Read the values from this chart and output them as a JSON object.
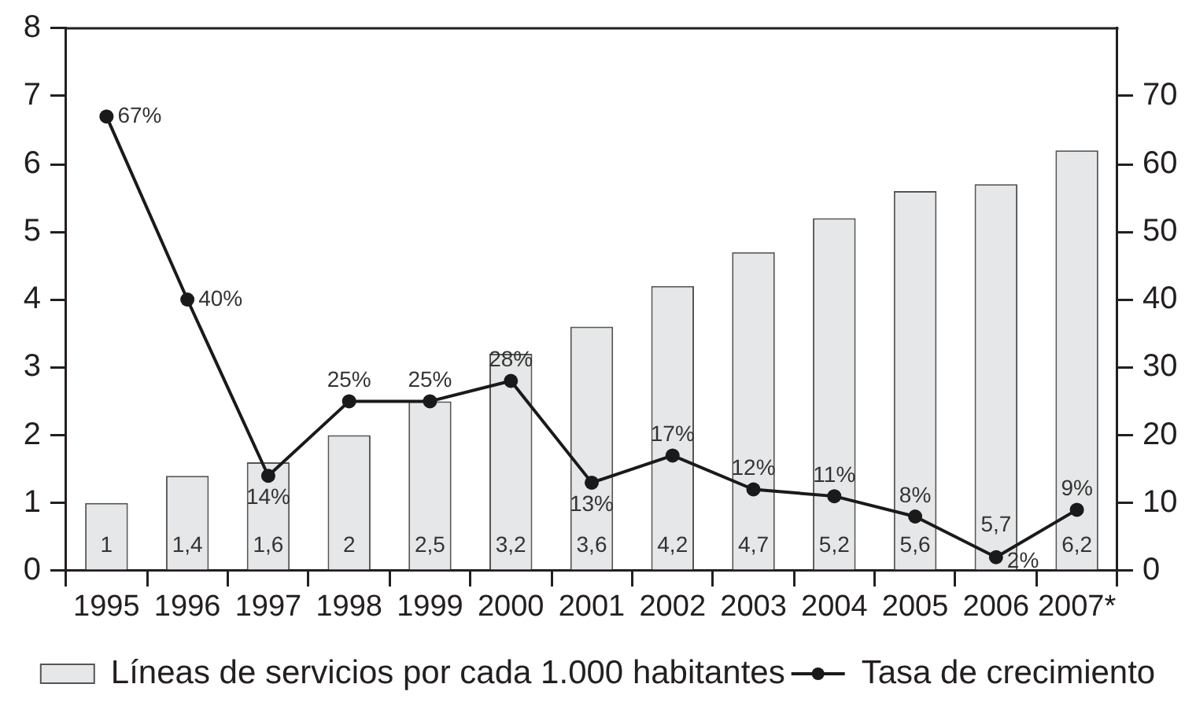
{
  "chart_data": {
    "type": "bar",
    "categories": [
      "1995",
      "1996",
      "1997",
      "1998",
      "1999",
      "2000",
      "2001",
      "2002",
      "2003",
      "2004",
      "2005",
      "2006",
      "2007*"
    ],
    "series": [
      {
        "name": "Líneas de servicios por cada 1.000 habitantes",
        "color": "#e6e7e8",
        "values": [
          1,
          1.4,
          1.6,
          2,
          2.5,
          3.2,
          3.6,
          4.2,
          4.7,
          5.2,
          5.6,
          5.7,
          6.2
        ],
        "value_labels": [
          "1",
          "1,4",
          "1,6",
          "2",
          "2,5",
          "3,2",
          "3,6",
          "4,2",
          "4,7",
          "5,2",
          "5,6",
          "5,7",
          "6,2"
        ]
      },
      {
        "name": "Tasa de crecimiento",
        "type": "line",
        "axis": "y2",
        "color": "#1a1a1a",
        "marker": "circle",
        "line_style": "solid",
        "values": [
          67,
          40,
          14,
          25,
          25,
          28,
          13,
          17,
          12,
          11,
          8,
          2,
          9
        ],
        "value_labels": [
          "67%",
          "40%",
          "14%",
          "25%",
          "25%",
          "28%",
          "13%",
          "17%",
          "12%",
          "11%",
          "8%",
          "2%",
          "9%"
        ]
      }
    ],
    "ylim": [
      0,
      8
    ],
    "yticks": [
      0,
      1,
      2,
      3,
      4,
      5,
      6,
      7,
      8
    ],
    "y2lim": [
      0,
      80
    ],
    "y2ticks": [
      0,
      10,
      20,
      30,
      40,
      50,
      60,
      70
    ],
    "legend": "bottom",
    "grid": false
  }
}
